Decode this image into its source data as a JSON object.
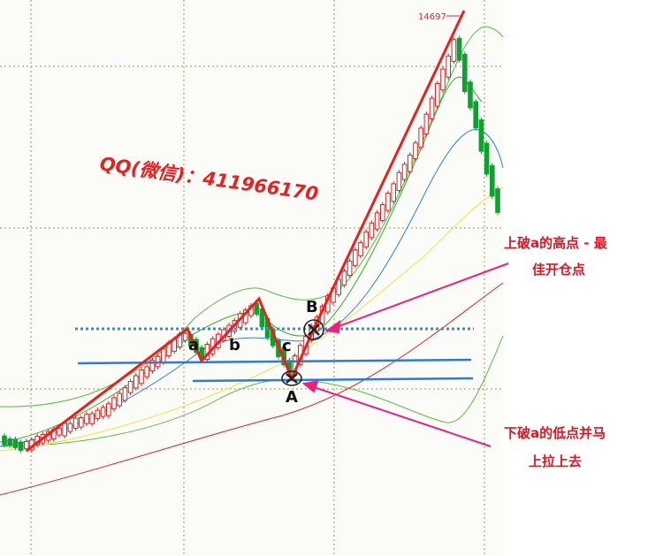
{
  "price_label": "14697",
  "watermark": "QQ(微信)：411966170",
  "points": {
    "a": "a",
    "b": "b",
    "c": "c",
    "A": "A",
    "B": "B"
  },
  "notes": [
    {
      "lines": [
        "上破a的高点 - 最",
        "佳开仓点"
      ]
    },
    {
      "lines": [
        "下破a的低点并马",
        "上拉上去"
      ]
    }
  ]
}
